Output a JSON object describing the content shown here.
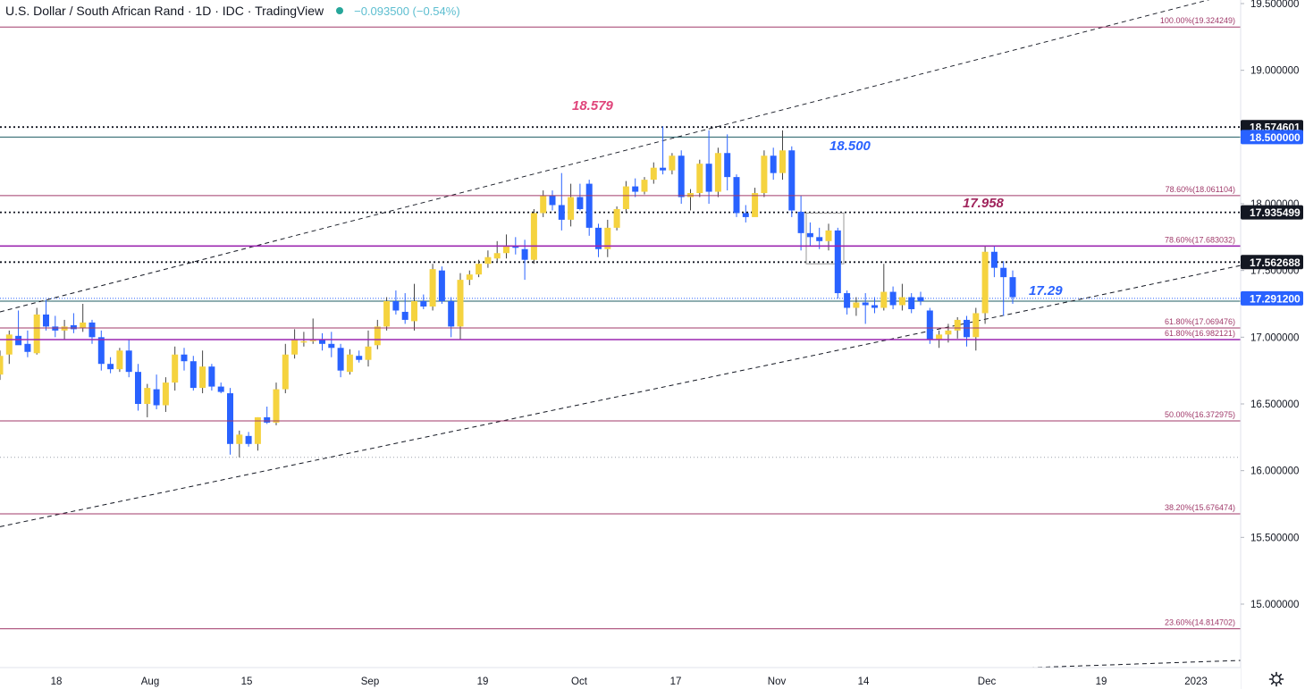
{
  "header": {
    "title": "U.S. Dollar / South African Rand · 1D · IDC · TradingView",
    "change": "−0.093500 (−0.54%)"
  },
  "colors": {
    "up": "#f5d33f",
    "down": "#2962ff",
    "fib": "#a03a6a",
    "purple": "#9c27b0",
    "pink_label": "#e0457b",
    "blue_label": "#2962ff",
    "maroon_label": "#a0245c"
  },
  "chart_data": {
    "type": "candlestick",
    "symbol": "USDZAR",
    "timeframe": "1D",
    "ylim": [
      14.55,
      19.52
    ],
    "y_ticks": [
      "19.500000",
      "19.000000",
      "18.000000",
      "17.500000",
      "17.000000",
      "16.500000",
      "16.000000",
      "15.500000",
      "15.000000"
    ],
    "x_ticks": [
      "18",
      "Aug",
      "15",
      "Sep",
      "19",
      "Oct",
      "17",
      "Nov",
      "14",
      "Dec",
      "19",
      "2023"
    ],
    "price_tags": [
      {
        "value": 18.574601,
        "label": "18.574601",
        "style": "dark"
      },
      {
        "value": 18.5,
        "label": "18.500000",
        "style": "blue"
      },
      {
        "value": 17.935499,
        "label": "17.935499",
        "style": "dark"
      },
      {
        "value": 17.562688,
        "label": "17.562688",
        "style": "dark"
      },
      {
        "value": 17.2912,
        "label": "17.291200",
        "style": "blue"
      }
    ],
    "fib_levels": [
      {
        "value": 19.324249,
        "label": "100.00%(19.324249)",
        "color": "#a03a6a"
      },
      {
        "value": 18.061104,
        "label": "78.60%(18.061104)",
        "color": "#a03a6a"
      },
      {
        "value": 17.683032,
        "label": "78.60%(17.683032)",
        "color": "#9c27b0"
      },
      {
        "value": 17.069476,
        "label": "61.80%(17.069476)",
        "color": "#a03a6a"
      },
      {
        "value": 16.982121,
        "label": "61.80%(16.982121)",
        "color": "#9c27b0"
      },
      {
        "value": 16.372975,
        "label": "50.00%(16.372975)",
        "color": "#a03a6a"
      },
      {
        "value": 15.676474,
        "label": "38.20%(15.676474)",
        "color": "#a03a6a"
      },
      {
        "value": 14.814702,
        "label": "23.60%(14.814702)",
        "color": "#a03a6a"
      }
    ],
    "horizontal_lines": [
      {
        "value": 18.574601,
        "style": "dotted"
      },
      {
        "value": 18.5,
        "style": "solid-teal"
      },
      {
        "value": 17.935499,
        "style": "dotted"
      },
      {
        "value": 17.562688,
        "style": "dotted"
      },
      {
        "value": 17.2912,
        "style": "dotted-blue"
      },
      {
        "value": 17.27,
        "style": "solid-teal"
      },
      {
        "value": 16.1,
        "style": "dotted-gray"
      }
    ],
    "annotations": [
      {
        "text": "18.579",
        "value": 18.579,
        "color": "pink"
      },
      {
        "text": "18.500",
        "value": 18.5,
        "color": "blue"
      },
      {
        "text": "17.958",
        "value": 17.958,
        "color": "maroon"
      },
      {
        "text": "17.29",
        "value": 17.29,
        "color": "blue"
      }
    ],
    "channel": {
      "lower": [
        [
          0,
          15.58
        ],
        [
          137,
          17.57
        ]
      ],
      "upper": [
        [
          0,
          17.19
        ],
        [
          137,
          19.63
        ]
      ]
    },
    "candles": [
      {
        "d": 0,
        "o": 16.72,
        "h": 16.9,
        "l": 16.68,
        "c": 16.86
      },
      {
        "d": 1,
        "o": 16.87,
        "h": 17.05,
        "l": 16.8,
        "c": 17.02
      },
      {
        "d": 2,
        "o": 17.01,
        "h": 17.2,
        "l": 16.96,
        "c": 16.94
      },
      {
        "d": 3,
        "o": 16.95,
        "h": 17.05,
        "l": 16.85,
        "c": 16.89
      },
      {
        "d": 4,
        "o": 16.88,
        "h": 17.22,
        "l": 16.87,
        "c": 17.17
      },
      {
        "d": 5,
        "o": 17.17,
        "h": 17.28,
        "l": 17.05,
        "c": 17.08
      },
      {
        "d": 6,
        "o": 17.08,
        "h": 17.16,
        "l": 17.0,
        "c": 17.05
      },
      {
        "d": 7,
        "o": 17.05,
        "h": 17.13,
        "l": 16.98,
        "c": 17.08
      },
      {
        "d": 8,
        "o": 17.09,
        "h": 17.18,
        "l": 17.03,
        "c": 17.06
      },
      {
        "d": 9,
        "o": 17.07,
        "h": 17.25,
        "l": 17.04,
        "c": 17.11
      },
      {
        "d": 10,
        "o": 17.11,
        "h": 17.13,
        "l": 16.95,
        "c": 17.0
      },
      {
        "d": 11,
        "o": 17.0,
        "h": 17.05,
        "l": 16.75,
        "c": 16.8
      },
      {
        "d": 12,
        "o": 16.8,
        "h": 16.85,
        "l": 16.73,
        "c": 16.76
      },
      {
        "d": 13,
        "o": 16.76,
        "h": 16.92,
        "l": 16.74,
        "c": 16.9
      },
      {
        "d": 14,
        "o": 16.9,
        "h": 16.98,
        "l": 16.7,
        "c": 16.74
      },
      {
        "d": 15,
        "o": 16.74,
        "h": 16.8,
        "l": 16.45,
        "c": 16.5
      },
      {
        "d": 16,
        "o": 16.5,
        "h": 16.65,
        "l": 16.4,
        "c": 16.62
      },
      {
        "d": 17,
        "o": 16.61,
        "h": 16.72,
        "l": 16.46,
        "c": 16.49
      },
      {
        "d": 18,
        "o": 16.49,
        "h": 16.7,
        "l": 16.44,
        "c": 16.66
      },
      {
        "d": 19,
        "o": 16.66,
        "h": 16.93,
        "l": 16.6,
        "c": 16.87
      },
      {
        "d": 20,
        "o": 16.87,
        "h": 16.92,
        "l": 16.75,
        "c": 16.82
      },
      {
        "d": 21,
        "o": 16.82,
        "h": 16.86,
        "l": 16.6,
        "c": 16.62
      },
      {
        "d": 22,
        "o": 16.62,
        "h": 16.9,
        "l": 16.58,
        "c": 16.78
      },
      {
        "d": 23,
        "o": 16.78,
        "h": 16.8,
        "l": 16.6,
        "c": 16.63
      },
      {
        "d": 24,
        "o": 16.63,
        "h": 16.66,
        "l": 16.58,
        "c": 16.59
      },
      {
        "d": 25,
        "o": 16.58,
        "h": 16.62,
        "l": 16.12,
        "c": 16.2
      },
      {
        "d": 26,
        "o": 16.2,
        "h": 16.3,
        "l": 16.1,
        "c": 16.27
      },
      {
        "d": 27,
        "o": 16.26,
        "h": 16.29,
        "l": 16.18,
        "c": 16.2
      },
      {
        "d": 28,
        "o": 16.2,
        "h": 16.4,
        "l": 16.15,
        "c": 16.4
      },
      {
        "d": 29,
        "o": 16.4,
        "h": 16.48,
        "l": 16.35,
        "c": 16.36
      },
      {
        "d": 30,
        "o": 16.36,
        "h": 16.66,
        "l": 16.34,
        "c": 16.61
      },
      {
        "d": 31,
        "o": 16.61,
        "h": 16.95,
        "l": 16.58,
        "c": 16.87
      },
      {
        "d": 32,
        "o": 16.87,
        "h": 17.06,
        "l": 16.84,
        "c": 16.98
      },
      {
        "d": 33,
        "o": 16.97,
        "h": 17.04,
        "l": 16.93,
        "c": 16.97
      },
      {
        "d": 34,
        "o": 16.97,
        "h": 17.14,
        "l": 16.95,
        "c": 16.98
      },
      {
        "d": 35,
        "o": 16.98,
        "h": 17.03,
        "l": 16.9,
        "c": 16.95
      },
      {
        "d": 36,
        "o": 16.95,
        "h": 17.04,
        "l": 16.85,
        "c": 16.92
      },
      {
        "d": 37,
        "o": 16.92,
        "h": 16.95,
        "l": 16.7,
        "c": 16.75
      },
      {
        "d": 38,
        "o": 16.74,
        "h": 16.91,
        "l": 16.72,
        "c": 16.87
      },
      {
        "d": 39,
        "o": 16.86,
        "h": 16.9,
        "l": 16.81,
        "c": 16.83
      },
      {
        "d": 40,
        "o": 16.83,
        "h": 17.05,
        "l": 16.78,
        "c": 16.93
      },
      {
        "d": 41,
        "o": 16.94,
        "h": 17.13,
        "l": 16.91,
        "c": 17.08
      },
      {
        "d": 42,
        "o": 17.08,
        "h": 17.3,
        "l": 17.05,
        "c": 17.27
      },
      {
        "d": 43,
        "o": 17.27,
        "h": 17.35,
        "l": 17.17,
        "c": 17.2
      },
      {
        "d": 44,
        "o": 17.19,
        "h": 17.33,
        "l": 17.1,
        "c": 17.13
      },
      {
        "d": 45,
        "o": 17.12,
        "h": 17.4,
        "l": 17.05,
        "c": 17.27
      },
      {
        "d": 46,
        "o": 17.27,
        "h": 17.32,
        "l": 17.21,
        "c": 17.23
      },
      {
        "d": 47,
        "o": 17.23,
        "h": 17.55,
        "l": 17.2,
        "c": 17.51
      },
      {
        "d": 48,
        "o": 17.5,
        "h": 17.53,
        "l": 17.25,
        "c": 17.27
      },
      {
        "d": 49,
        "o": 17.27,
        "h": 17.3,
        "l": 17.0,
        "c": 17.08
      },
      {
        "d": 50,
        "o": 17.08,
        "h": 17.48,
        "l": 16.98,
        "c": 17.43
      },
      {
        "d": 51,
        "o": 17.43,
        "h": 17.5,
        "l": 17.39,
        "c": 17.47
      },
      {
        "d": 52,
        "o": 17.47,
        "h": 17.58,
        "l": 17.45,
        "c": 17.55
      },
      {
        "d": 53,
        "o": 17.55,
        "h": 17.65,
        "l": 17.52,
        "c": 17.6
      },
      {
        "d": 54,
        "o": 17.59,
        "h": 17.72,
        "l": 17.56,
        "c": 17.63
      },
      {
        "d": 55,
        "o": 17.63,
        "h": 17.77,
        "l": 17.59,
        "c": 17.68
      },
      {
        "d": 56,
        "o": 17.68,
        "h": 17.75,
        "l": 17.62,
        "c": 17.67
      },
      {
        "d": 57,
        "o": 17.66,
        "h": 17.73,
        "l": 17.43,
        "c": 17.58
      },
      {
        "d": 58,
        "o": 17.58,
        "h": 17.96,
        "l": 17.55,
        "c": 17.93
      },
      {
        "d": 59,
        "o": 17.93,
        "h": 18.1,
        "l": 17.9,
        "c": 18.06
      },
      {
        "d": 60,
        "o": 18.06,
        "h": 18.1,
        "l": 17.95,
        "c": 17.99
      },
      {
        "d": 61,
        "o": 17.99,
        "h": 18.23,
        "l": 17.8,
        "c": 17.88
      },
      {
        "d": 62,
        "o": 17.88,
        "h": 18.15,
        "l": 17.83,
        "c": 18.05
      },
      {
        "d": 63,
        "o": 18.05,
        "h": 18.15,
        "l": 17.95,
        "c": 17.96
      },
      {
        "d": 64,
        "o": 18.15,
        "h": 18.18,
        "l": 17.76,
        "c": 17.82
      },
      {
        "d": 65,
        "o": 17.82,
        "h": 17.85,
        "l": 17.6,
        "c": 17.66
      },
      {
        "d": 66,
        "o": 17.66,
        "h": 17.88,
        "l": 17.6,
        "c": 17.82
      },
      {
        "d": 67,
        "o": 17.82,
        "h": 17.98,
        "l": 17.8,
        "c": 17.96
      },
      {
        "d": 68,
        "o": 17.96,
        "h": 18.17,
        "l": 17.93,
        "c": 18.13
      },
      {
        "d": 69,
        "o": 18.13,
        "h": 18.19,
        "l": 18.05,
        "c": 18.09
      },
      {
        "d": 70,
        "o": 18.09,
        "h": 18.2,
        "l": 18.07,
        "c": 18.18
      },
      {
        "d": 71,
        "o": 18.18,
        "h": 18.31,
        "l": 18.15,
        "c": 18.27
      },
      {
        "d": 72,
        "o": 18.27,
        "h": 18.58,
        "l": 18.22,
        "c": 18.25
      },
      {
        "d": 73,
        "o": 18.25,
        "h": 18.38,
        "l": 18.22,
        "c": 18.36
      },
      {
        "d": 74,
        "o": 18.36,
        "h": 18.4,
        "l": 18.0,
        "c": 18.05
      },
      {
        "d": 75,
        "o": 18.05,
        "h": 18.11,
        "l": 17.95,
        "c": 18.08
      },
      {
        "d": 76,
        "o": 18.08,
        "h": 18.33,
        "l": 18.05,
        "c": 18.3
      },
      {
        "d": 77,
        "o": 18.3,
        "h": 18.55,
        "l": 18.0,
        "c": 18.09
      },
      {
        "d": 78,
        "o": 18.09,
        "h": 18.42,
        "l": 18.05,
        "c": 18.38
      },
      {
        "d": 79,
        "o": 18.38,
        "h": 18.52,
        "l": 18.1,
        "c": 18.2
      },
      {
        "d": 80,
        "o": 18.2,
        "h": 18.22,
        "l": 17.9,
        "c": 17.93
      },
      {
        "d": 81,
        "o": 17.93,
        "h": 17.99,
        "l": 17.86,
        "c": 17.9
      },
      {
        "d": 82,
        "o": 17.9,
        "h": 18.12,
        "l": 17.92,
        "c": 18.08
      },
      {
        "d": 83,
        "o": 18.08,
        "h": 18.4,
        "l": 18.05,
        "c": 18.36
      },
      {
        "d": 84,
        "o": 18.36,
        "h": 18.42,
        "l": 18.18,
        "c": 18.23
      },
      {
        "d": 85,
        "o": 18.23,
        "h": 18.55,
        "l": 18.18,
        "c": 18.4
      },
      {
        "d": 86,
        "o": 18.4,
        "h": 18.43,
        "l": 17.9,
        "c": 17.95
      },
      {
        "d": 87,
        "o": 17.94,
        "h": 18.06,
        "l": 17.65,
        "c": 17.78
      },
      {
        "d": 88,
        "o": 17.78,
        "h": 17.86,
        "l": 17.68,
        "c": 17.75
      },
      {
        "d": 89,
        "o": 17.75,
        "h": 17.82,
        "l": 17.66,
        "c": 17.72
      },
      {
        "d": 90,
        "o": 17.72,
        "h": 17.85,
        "l": 17.65,
        "c": 17.8
      },
      {
        "d": 91,
        "o": 17.8,
        "h": 17.82,
        "l": 17.29,
        "c": 17.33
      },
      {
        "d": 92,
        "o": 17.33,
        "h": 17.35,
        "l": 17.17,
        "c": 17.22
      },
      {
        "d": 93,
        "o": 17.22,
        "h": 17.3,
        "l": 17.16,
        "c": 17.26
      },
      {
        "d": 94,
        "o": 17.26,
        "h": 17.33,
        "l": 17.1,
        "c": 17.24
      },
      {
        "d": 95,
        "o": 17.24,
        "h": 17.3,
        "l": 17.18,
        "c": 17.22
      },
      {
        "d": 96,
        "o": 17.22,
        "h": 17.55,
        "l": 17.2,
        "c": 17.34
      },
      {
        "d": 97,
        "o": 17.34,
        "h": 17.38,
        "l": 17.21,
        "c": 17.24
      },
      {
        "d": 98,
        "o": 17.24,
        "h": 17.4,
        "l": 17.2,
        "c": 17.3
      },
      {
        "d": 99,
        "o": 17.3,
        "h": 17.33,
        "l": 17.18,
        "c": 17.21
      },
      {
        "d": 100,
        "o": 17.3,
        "h": 17.34,
        "l": 17.24,
        "c": 17.27
      },
      {
        "d": 101,
        "o": 17.2,
        "h": 17.22,
        "l": 16.95,
        "c": 16.98
      },
      {
        "d": 102,
        "o": 16.98,
        "h": 17.05,
        "l": 16.92,
        "c": 17.02
      },
      {
        "d": 103,
        "o": 17.02,
        "h": 17.1,
        "l": 16.96,
        "c": 17.05
      },
      {
        "d": 104,
        "o": 17.05,
        "h": 17.15,
        "l": 16.99,
        "c": 17.13
      },
      {
        "d": 105,
        "o": 17.13,
        "h": 17.16,
        "l": 16.93,
        "c": 17.0
      },
      {
        "d": 106,
        "o": 17.0,
        "h": 17.22,
        "l": 16.9,
        "c": 17.18
      },
      {
        "d": 107,
        "o": 17.18,
        "h": 17.68,
        "l": 17.1,
        "c": 17.64
      },
      {
        "d": 108,
        "o": 17.64,
        "h": 17.68,
        "l": 17.45,
        "c": 17.52
      },
      {
        "d": 109,
        "o": 17.52,
        "h": 17.57,
        "l": 17.16,
        "c": 17.45
      },
      {
        "d": 110,
        "o": 17.45,
        "h": 17.5,
        "l": 17.25,
        "c": 17.3
      }
    ]
  }
}
